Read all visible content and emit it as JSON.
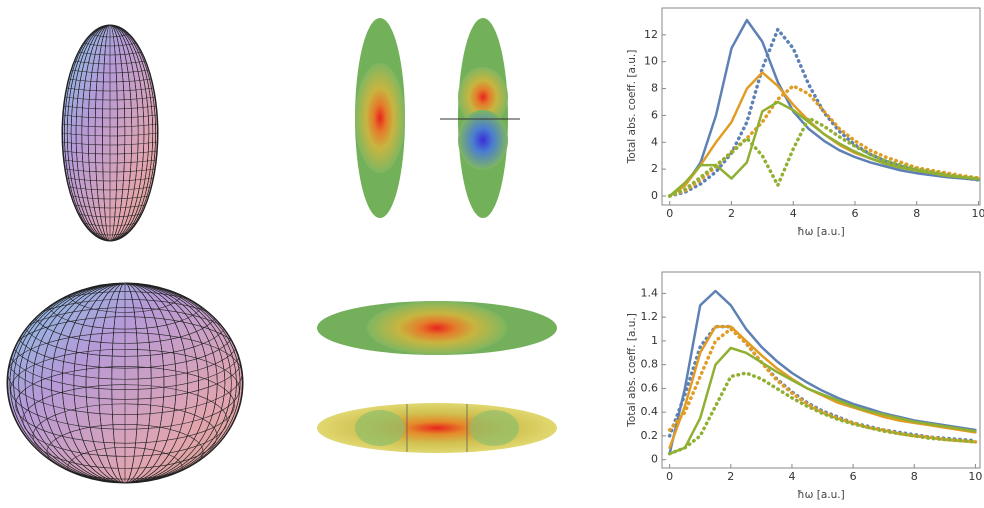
{
  "chart_data": [
    {
      "type": "line",
      "x_label": "ħω [a.u.]",
      "y_label": "Total abs. coeff. [a.u.]",
      "x": [
        0,
        0.5,
        1,
        1.5,
        2,
        2.5,
        3,
        3.5,
        4,
        4.5,
        5,
        5.5,
        6,
        6.5,
        7,
        7.5,
        8,
        8.5,
        9,
        9.5,
        10
      ],
      "xlim": [
        -0.25,
        10.05
      ],
      "ylim": [
        -0.67,
        14
      ],
      "xticks": [
        0,
        2,
        4,
        6,
        8,
        10
      ],
      "yticks": [
        0,
        2,
        4,
        6,
        8,
        10,
        12
      ],
      "series": [
        {
          "color": "#5e81b5",
          "dash": false,
          "values": [
            0,
            0.8,
            2.5,
            6,
            11,
            13.1,
            11.5,
            8.5,
            6.3,
            5,
            4.1,
            3.4,
            2.9,
            2.5,
            2.2,
            1.9,
            1.7,
            1.55,
            1.4,
            1.3,
            1.2
          ]
        },
        {
          "color": "#5e81b5",
          "dash": true,
          "values": [
            0,
            0.3,
            0.9,
            1.8,
            3.2,
            5.5,
            9.5,
            12.4,
            11,
            8.3,
            6.2,
            4.8,
            3.8,
            3.1,
            2.6,
            2.2,
            1.9,
            1.7,
            1.5,
            1.35,
            1.2
          ]
        },
        {
          "color": "#e19c24",
          "dash": false,
          "values": [
            0,
            0.8,
            2.3,
            4,
            5.5,
            8,
            9.2,
            8.2,
            6.8,
            5.6,
            4.6,
            3.8,
            3.2,
            2.8,
            2.4,
            2.1,
            1.9,
            1.7,
            1.5,
            1.4,
            1.3
          ]
        },
        {
          "color": "#e19c24",
          "dash": true,
          "values": [
            0,
            0.4,
            1.2,
            2.2,
            3.3,
            4.3,
            5.5,
            7.2,
            8.2,
            7.6,
            6.3,
            5,
            4.1,
            3.4,
            2.9,
            2.5,
            2.1,
            1.9,
            1.7,
            1.5,
            1.35
          ]
        },
        {
          "color": "#8fb032",
          "dash": false,
          "values": [
            0,
            1,
            2.3,
            2.3,
            1.3,
            2.5,
            6.3,
            7,
            6.4,
            5.5,
            4.6,
            3.9,
            3.3,
            2.8,
            2.4,
            2.1,
            1.9,
            1.7,
            1.5,
            1.4,
            1.25
          ]
        },
        {
          "color": "#8fb032",
          "dash": true,
          "values": [
            0,
            0.5,
            1.4,
            2.3,
            3.2,
            4.3,
            3,
            0.8,
            3.5,
            5.8,
            5.2,
            4.4,
            3.7,
            3.1,
            2.6,
            2.3,
            2,
            1.8,
            1.6,
            1.4,
            1.3
          ]
        }
      ]
    },
    {
      "type": "line",
      "x_label": "ħω [a.u.]",
      "y_label": "Total abs. coeff. [a.u.]",
      "x": [
        0,
        0.5,
        1,
        1.5,
        2,
        2.5,
        3,
        3.5,
        4,
        4.5,
        5,
        5.5,
        6,
        6.5,
        7,
        7.5,
        8,
        8.5,
        9,
        9.5,
        10
      ],
      "xlim": [
        -0.25,
        10.15
      ],
      "ylim": [
        -0.07,
        1.58
      ],
      "xticks": [
        0,
        2,
        4,
        6,
        8,
        10
      ],
      "yticks": [
        0,
        0.2,
        0.4,
        0.6,
        0.8,
        1,
        1.2,
        1.4
      ],
      "series": [
        {
          "color": "#5e81b5",
          "dash": false,
          "values": [
            0.05,
            0.6,
            1.3,
            1.42,
            1.3,
            1.1,
            0.95,
            0.83,
            0.73,
            0.65,
            0.58,
            0.52,
            0.47,
            0.43,
            0.39,
            0.36,
            0.33,
            0.31,
            0.29,
            0.27,
            0.25
          ]
        },
        {
          "color": "#5e81b5",
          "dash": true,
          "values": [
            0.2,
            0.55,
            0.95,
            1.12,
            1.12,
            0.98,
            0.82,
            0.68,
            0.57,
            0.48,
            0.41,
            0.36,
            0.31,
            0.28,
            0.25,
            0.23,
            0.21,
            0.19,
            0.18,
            0.17,
            0.16
          ]
        },
        {
          "color": "#e19c24",
          "dash": false,
          "values": [
            0.1,
            0.45,
            0.9,
            1.12,
            1.12,
            1,
            0.88,
            0.77,
            0.68,
            0.6,
            0.54,
            0.48,
            0.44,
            0.4,
            0.36,
            0.33,
            0.31,
            0.29,
            0.27,
            0.25,
            0.23
          ]
        },
        {
          "color": "#e19c24",
          "dash": true,
          "values": [
            0.25,
            0.4,
            0.7,
            1,
            1.1,
            0.98,
            0.82,
            0.67,
            0.56,
            0.47,
            0.4,
            0.35,
            0.31,
            0.27,
            0.25,
            0.22,
            0.2,
            0.19,
            0.17,
            0.16,
            0.15
          ]
        },
        {
          "color": "#8fb032",
          "dash": false,
          "values": [
            0.05,
            0.1,
            0.35,
            0.8,
            0.94,
            0.9,
            0.82,
            0.74,
            0.67,
            0.6,
            0.55,
            0.5,
            0.45,
            0.41,
            0.38,
            0.35,
            0.32,
            0.3,
            0.28,
            0.26,
            0.24
          ]
        },
        {
          "color": "#8fb032",
          "dash": true,
          "values": [
            0.05,
            0.1,
            0.2,
            0.45,
            0.7,
            0.73,
            0.68,
            0.6,
            0.52,
            0.45,
            0.39,
            0.34,
            0.3,
            0.27,
            0.24,
            0.22,
            0.2,
            0.18,
            0.17,
            0.16,
            0.15
          ]
        }
      ]
    }
  ]
}
